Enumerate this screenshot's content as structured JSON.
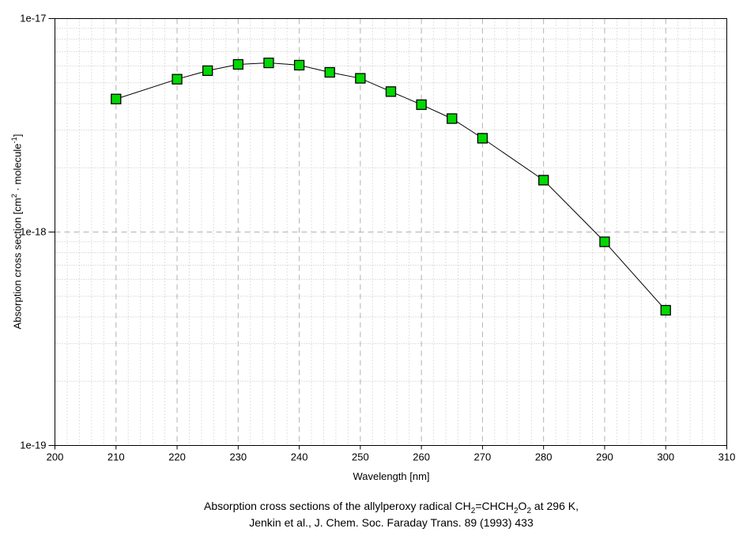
{
  "colors": {
    "background": "#ffffff",
    "axis": "#000000",
    "major_grid": "#b3b3b3",
    "minor_grid": "#c2c2c2",
    "marker_fill": "#00d800",
    "marker_edge": "#000000",
    "data_line": "#000000"
  },
  "chart_data": {
    "type": "line",
    "xlabel": "Wavelength [nm]",
    "ylabel": "Absorption cross section [cm2 · molecule-1]",
    "ylabel_parts": [
      {
        "t": "Absorption cross section [cm"
      },
      {
        "sup": "2"
      },
      {
        "t": " · molecule"
      },
      {
        "sup": "-1"
      },
      {
        "t": "]"
      }
    ],
    "xlim": [
      200,
      310
    ],
    "ylim": [
      1e-19,
      1e-17
    ],
    "yscale": "log",
    "grid": true,
    "x_ticks": [
      200,
      210,
      220,
      230,
      240,
      250,
      260,
      270,
      280,
      290,
      300,
      310
    ],
    "x_minor_step": 2,
    "y_ticks": [
      {
        "value": 1e-17,
        "label": "1e-17"
      },
      {
        "value": 1e-18,
        "label": "1e-18"
      },
      {
        "value": 1e-19,
        "label": "1e-19"
      }
    ],
    "series": [
      {
        "x": [
          210,
          220,
          225,
          230,
          235,
          240,
          245,
          250,
          255,
          260,
          265,
          270,
          280,
          290,
          300
        ],
        "y": [
          4.2e-18,
          5.2e-18,
          5.7e-18,
          6.1e-18,
          6.2e-18,
          6.05e-18,
          5.6e-18,
          5.25e-18,
          4.55e-18,
          3.95e-18,
          3.4e-18,
          2.75e-18,
          1.75e-18,
          9e-19,
          4.3e-19
        ],
        "marker": "square"
      }
    ]
  },
  "caption": {
    "line1_parts": [
      {
        "t": "Absorption cross sections of the allylperoxy radical CH"
      },
      {
        "sub": "2"
      },
      {
        "t": "=CHCH"
      },
      {
        "sub": "2"
      },
      {
        "t": "O"
      },
      {
        "sub": "2"
      },
      {
        "t": " at 296 K,"
      }
    ],
    "line1": "Absorption cross sections of the allylperoxy radical CH2=CHCH2O2 at 296 K,",
    "line2": "Jenkin et al., J. Chem. Soc. Faraday Trans. 89 (1993) 433"
  }
}
